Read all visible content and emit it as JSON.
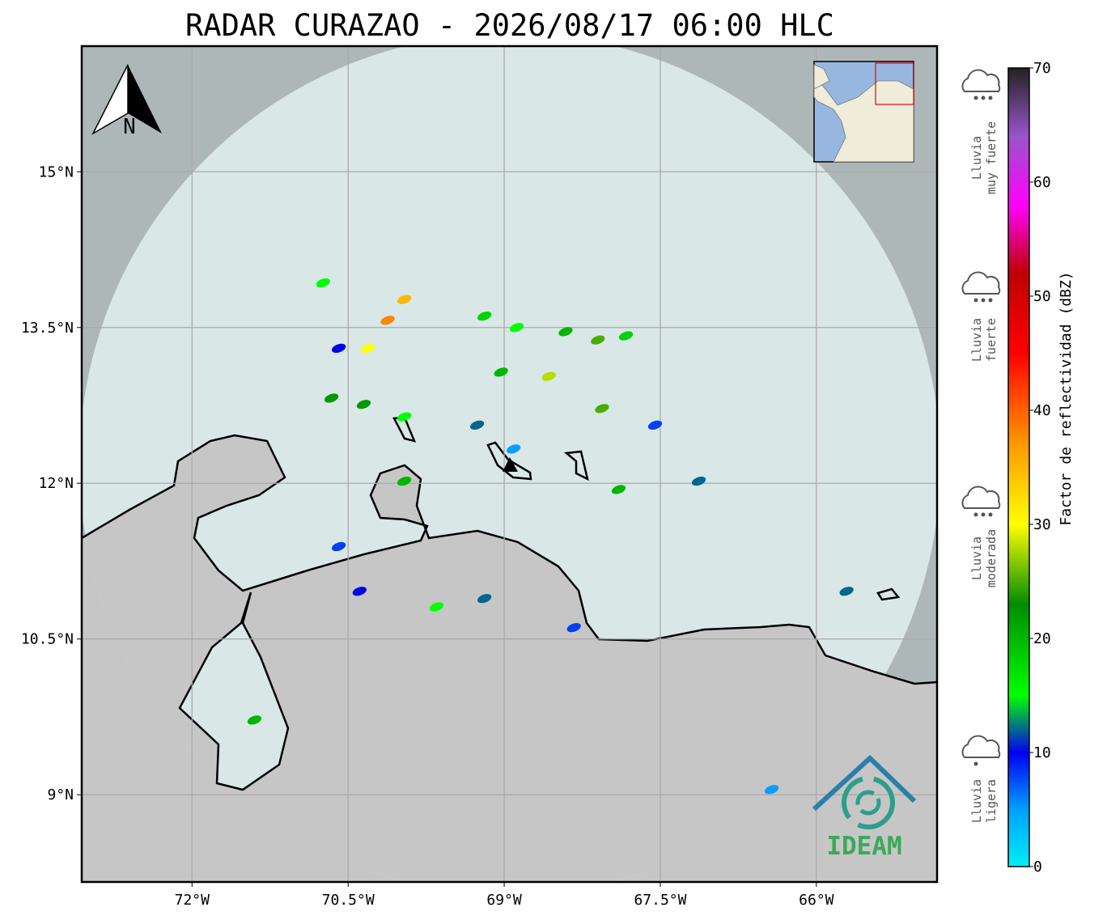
{
  "title": "RADAR CURAZAO - 2026/08/17 06:00 HLC",
  "map": {
    "xlim": [
      -73.06,
      -64.84
    ],
    "ylim": [
      8.16,
      16.21
    ],
    "xticks": [
      {
        "value": -72,
        "label": "72°W"
      },
      {
        "value": -70.5,
        "label": "70.5°W"
      },
      {
        "value": -69,
        "label": "69°W"
      },
      {
        "value": -67.5,
        "label": "67.5°W"
      },
      {
        "value": -66,
        "label": "66°W"
      }
    ],
    "yticks": [
      {
        "value": 15,
        "label": "15°N"
      },
      {
        "value": 13.5,
        "label": "13.5°N"
      },
      {
        "value": 12,
        "label": "12°N"
      },
      {
        "value": 10.5,
        "label": "10.5°N"
      },
      {
        "value": 9,
        "label": "9°N"
      }
    ],
    "grid": true,
    "echoes": [
      {
        "lon": -70.74,
        "lat": 13.93,
        "dbz": 15
      },
      {
        "lon": -69.96,
        "lat": 13.77,
        "dbz": 35
      },
      {
        "lon": -70.12,
        "lat": 13.57,
        "dbz": 38
      },
      {
        "lon": -70.31,
        "lat": 13.3,
        "dbz": 30
      },
      {
        "lon": -70.59,
        "lat": 13.3,
        "dbz": 10
      },
      {
        "lon": -69.19,
        "lat": 13.61,
        "dbz": 18
      },
      {
        "lon": -68.88,
        "lat": 13.5,
        "dbz": 15
      },
      {
        "lon": -68.41,
        "lat": 13.46,
        "dbz": 20
      },
      {
        "lon": -68.1,
        "lat": 13.38,
        "dbz": 25
      },
      {
        "lon": -67.83,
        "lat": 13.42,
        "dbz": 18
      },
      {
        "lon": -69.03,
        "lat": 13.07,
        "dbz": 20
      },
      {
        "lon": -68.57,
        "lat": 13.03,
        "dbz": 28
      },
      {
        "lon": -70.66,
        "lat": 12.82,
        "dbz": 22
      },
      {
        "lon": -70.35,
        "lat": 12.76,
        "dbz": 22
      },
      {
        "lon": -69.96,
        "lat": 12.64,
        "dbz": 15
      },
      {
        "lon": -69.26,
        "lat": 12.56,
        "dbz": 12
      },
      {
        "lon": -68.91,
        "lat": 12.33,
        "dbz": 5
      },
      {
        "lon": -68.06,
        "lat": 12.72,
        "dbz": 25
      },
      {
        "lon": -67.55,
        "lat": 12.56,
        "dbz": 8
      },
      {
        "lon": -67.13,
        "lat": 12.02,
        "dbz": 12
      },
      {
        "lon": -69.96,
        "lat": 12.02,
        "dbz": 20
      },
      {
        "lon": -69.19,
        "lat": 10.89,
        "dbz": 12
      },
      {
        "lon": -68.33,
        "lat": 10.61,
        "dbz": 8
      },
      {
        "lon": -71.4,
        "lat": 9.72,
        "dbz": 20
      },
      {
        "lon": -69.65,
        "lat": 10.81,
        "dbz": 15
      },
      {
        "lon": -70.39,
        "lat": 10.96,
        "dbz": 10
      },
      {
        "lon": -70.59,
        "lat": 11.39,
        "dbz": 8
      },
      {
        "lon": -67.9,
        "lat": 11.94,
        "dbz": 20
      },
      {
        "lon": -65.71,
        "lat": 10.96,
        "dbz": 12
      },
      {
        "lon": -66.43,
        "lat": 9.05,
        "dbz": 5
      }
    ]
  },
  "north_label": "N",
  "logo": "IDEAM",
  "colorbar": {
    "label": "Factor de reflectividad (dBZ)",
    "lim": [
      0,
      70
    ],
    "ticks": [
      0,
      10,
      20,
      30,
      40,
      50,
      60,
      70
    ],
    "colormap": [
      [
        0,
        "#00eef5"
      ],
      [
        5,
        "#00a0ff"
      ],
      [
        10,
        "#0000f0"
      ],
      [
        15,
        "#00ff00"
      ],
      [
        23,
        "#008c00"
      ],
      [
        30,
        "#ffff00"
      ],
      [
        37,
        "#ff9900"
      ],
      [
        45,
        "#ff0000"
      ],
      [
        52,
        "#c00000"
      ],
      [
        58,
        "#ff00ff"
      ],
      [
        64,
        "#9955c9"
      ],
      [
        70,
        "#222222"
      ]
    ]
  },
  "rain_labels": [
    {
      "lines": [
        "Lluvia",
        "muy fuerte"
      ]
    },
    {
      "lines": [
        "Lluvia",
        "fuerte"
      ]
    },
    {
      "lines": [
        "Lluvia",
        "moderada"
      ]
    },
    {
      "lines": [
        "Lluvia",
        "ligera"
      ]
    }
  ]
}
